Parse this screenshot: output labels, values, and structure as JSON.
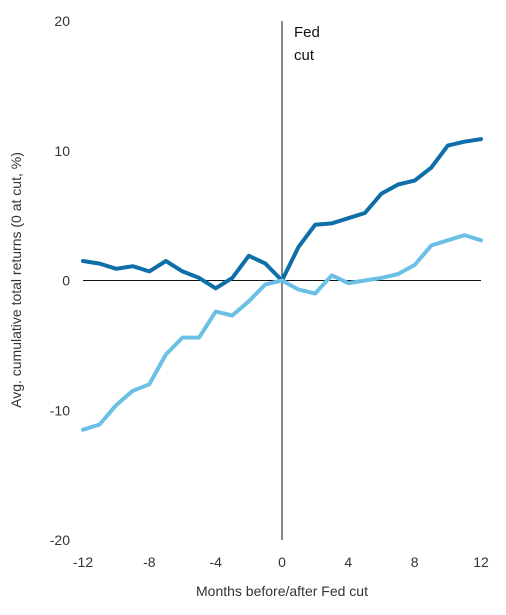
{
  "chart_data": {
    "type": "line",
    "xlabel": "Months before/after Fed cut",
    "ylabel": "Avg. cumulative total returns (0 at cut, %)",
    "xlim": [
      -12,
      12
    ],
    "ylim": [
      -20,
      20
    ],
    "x_ticks": [
      -12,
      -8,
      -4,
      0,
      4,
      8,
      12
    ],
    "y_ticks": [
      20,
      10,
      0,
      -10,
      -20
    ],
    "x_tick_labels": [
      "-12",
      "-8",
      "-4",
      "0",
      "4",
      "8",
      "12"
    ],
    "y_tick_labels": [
      "20",
      "10",
      "0",
      "-10",
      "-20"
    ],
    "annotation": {
      "lines": [
        "Fed",
        "cut"
      ],
      "x": 0
    },
    "x": [
      -12,
      -11,
      -10,
      -9,
      -8,
      -7,
      -6,
      -5,
      -4,
      -3,
      -2,
      -1,
      0,
      1,
      2,
      3,
      4,
      5,
      6,
      7,
      8,
      9,
      10,
      11,
      12
    ],
    "series": [
      {
        "color": "#0e6fa8",
        "values": [
          1.5,
          1.3,
          0.9,
          1.1,
          0.7,
          1.5,
          0.7,
          0.2,
          -0.6,
          0.2,
          1.9,
          1.3,
          0.0,
          2.6,
          4.3,
          4.4,
          4.8,
          5.2,
          6.7,
          7.4,
          7.7,
          8.7,
          10.4,
          10.7,
          10.9
        ]
      },
      {
        "color": "#6cc0e5",
        "values": [
          -11.5,
          -11.1,
          -9.6,
          -8.5,
          -8.0,
          -5.7,
          -4.4,
          -4.4,
          -2.4,
          -2.7,
          -1.6,
          -0.3,
          0.0,
          -0.7,
          -1.0,
          0.4,
          -0.2,
          0.0,
          0.2,
          0.5,
          1.2,
          2.7,
          3.1,
          3.5,
          3.1
        ]
      }
    ]
  }
}
